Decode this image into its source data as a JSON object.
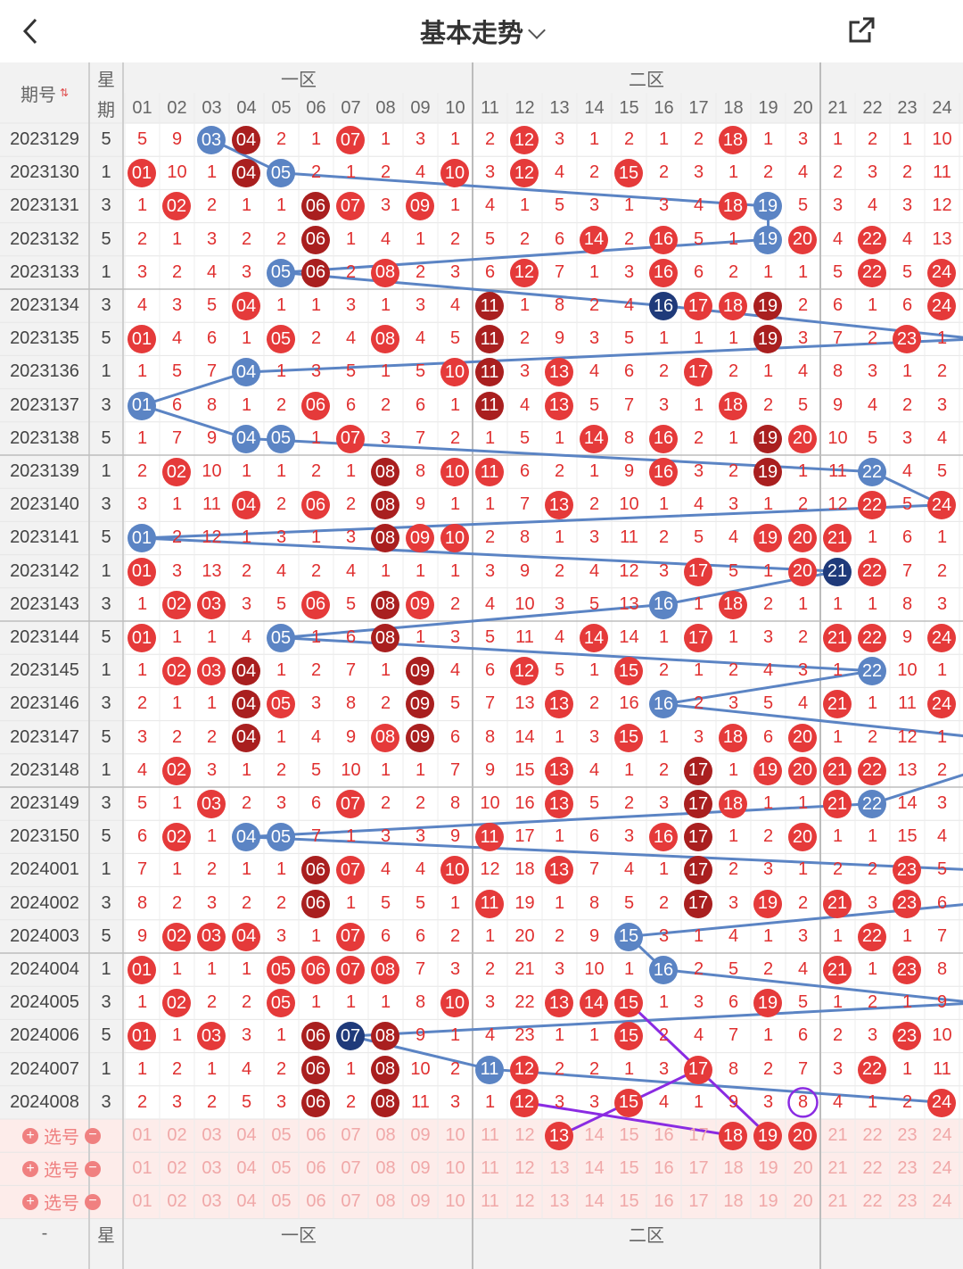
{
  "header": {
    "title": "基本走势",
    "back_icon": "chevron-left-icon",
    "share_icon": "share-icon"
  },
  "table": {
    "col_issue": "期号",
    "sort_icon": "sort-arrows-icon",
    "col_week_top": "星",
    "col_week_bottom": "期",
    "zone1": "一区",
    "zone2": "二区",
    "columns": [
      "01",
      "02",
      "03",
      "04",
      "05",
      "06",
      "07",
      "08",
      "09",
      "10",
      "11",
      "12",
      "13",
      "14",
      "15",
      "16",
      "17",
      "18",
      "19",
      "20",
      "21",
      "22",
      "23",
      "24"
    ],
    "rows": [
      {
        "issue": "2023129",
        "week": "5",
        "cells": [
          "5",
          "9",
          "03",
          "04",
          "2",
          "1",
          "07",
          "1",
          "3",
          "1",
          "2",
          "12",
          "3",
          "1",
          "2",
          "1",
          "2",
          "18",
          "1",
          "3",
          "1",
          "2",
          "1",
          "10"
        ]
      },
      {
        "issue": "2023130",
        "week": "1",
        "cells": [
          "01",
          "10",
          "1",
          "04",
          "05",
          "2",
          "1",
          "2",
          "4",
          "10",
          "3",
          "12",
          "4",
          "2",
          "15",
          "2",
          "3",
          "1",
          "2",
          "4",
          "2",
          "3",
          "2",
          "11"
        ]
      },
      {
        "issue": "2023131",
        "week": "3",
        "cells": [
          "1",
          "02",
          "2",
          "1",
          "1",
          "06",
          "07",
          "3",
          "09",
          "1",
          "4",
          "1",
          "5",
          "3",
          "1",
          "3",
          "4",
          "18",
          "19",
          "5",
          "3",
          "4",
          "3",
          "12"
        ]
      },
      {
        "issue": "2023132",
        "week": "5",
        "cells": [
          "2",
          "1",
          "3",
          "2",
          "2",
          "06",
          "1",
          "4",
          "1",
          "2",
          "5",
          "2",
          "6",
          "14",
          "2",
          "16",
          "5",
          "1",
          "19",
          "20",
          "4",
          "22",
          "4",
          "13"
        ]
      },
      {
        "issue": "2023133",
        "week": "1",
        "cells": [
          "3",
          "2",
          "4",
          "3",
          "05",
          "06",
          "2",
          "08",
          "2",
          "3",
          "6",
          "12",
          "7",
          "1",
          "3",
          "16",
          "6",
          "2",
          "1",
          "1",
          "5",
          "22",
          "5",
          "24"
        ]
      },
      {
        "issue": "2023134",
        "week": "3",
        "cells": [
          "4",
          "3",
          "5",
          "04",
          "1",
          "1",
          "3",
          "1",
          "3",
          "4",
          "11",
          "1",
          "8",
          "2",
          "4",
          "16",
          "17",
          "18",
          "19",
          "2",
          "6",
          "1",
          "6",
          "24"
        ]
      },
      {
        "issue": "2023135",
        "week": "5",
        "cells": [
          "01",
          "4",
          "6",
          "1",
          "05",
          "2",
          "4",
          "08",
          "4",
          "5",
          "11",
          "2",
          "9",
          "3",
          "5",
          "1",
          "1",
          "1",
          "19",
          "3",
          "7",
          "2",
          "23",
          "1"
        ]
      },
      {
        "issue": "2023136",
        "week": "1",
        "cells": [
          "1",
          "5",
          "7",
          "04",
          "1",
          "3",
          "5",
          "1",
          "5",
          "10",
          "11",
          "3",
          "13",
          "4",
          "6",
          "2",
          "17",
          "2",
          "1",
          "4",
          "8",
          "3",
          "1",
          "2"
        ]
      },
      {
        "issue": "2023137",
        "week": "3",
        "cells": [
          "01",
          "6",
          "8",
          "1",
          "2",
          "06",
          "6",
          "2",
          "6",
          "1",
          "11",
          "4",
          "13",
          "5",
          "7",
          "3",
          "1",
          "18",
          "2",
          "5",
          "9",
          "4",
          "2",
          "3"
        ]
      },
      {
        "issue": "2023138",
        "week": "5",
        "cells": [
          "1",
          "7",
          "9",
          "04",
          "05",
          "1",
          "07",
          "3",
          "7",
          "2",
          "1",
          "5",
          "1",
          "14",
          "8",
          "16",
          "2",
          "1",
          "19",
          "20",
          "10",
          "5",
          "3",
          "4"
        ]
      },
      {
        "issue": "2023139",
        "week": "1",
        "cells": [
          "2",
          "02",
          "10",
          "1",
          "1",
          "2",
          "1",
          "08",
          "8",
          "10",
          "11",
          "6",
          "2",
          "1",
          "9",
          "16",
          "3",
          "2",
          "19",
          "1",
          "11",
          "22",
          "4",
          "5"
        ]
      },
      {
        "issue": "2023140",
        "week": "3",
        "cells": [
          "3",
          "1",
          "11",
          "04",
          "2",
          "06",
          "2",
          "08",
          "9",
          "1",
          "1",
          "7",
          "13",
          "2",
          "10",
          "1",
          "4",
          "3",
          "1",
          "2",
          "12",
          "22",
          "5",
          "24"
        ]
      },
      {
        "issue": "2023141",
        "week": "5",
        "cells": [
          "01",
          "2",
          "12",
          "1",
          "3",
          "1",
          "3",
          "08",
          "09",
          "10",
          "2",
          "8",
          "1",
          "3",
          "11",
          "2",
          "5",
          "4",
          "19",
          "20",
          "21",
          "1",
          "6",
          "1"
        ]
      },
      {
        "issue": "2023142",
        "week": "1",
        "cells": [
          "01",
          "3",
          "13",
          "2",
          "4",
          "2",
          "4",
          "1",
          "1",
          "1",
          "3",
          "9",
          "2",
          "4",
          "12",
          "3",
          "17",
          "5",
          "1",
          "20",
          "21",
          "22",
          "7",
          "2"
        ]
      },
      {
        "issue": "2023143",
        "week": "3",
        "cells": [
          "1",
          "02",
          "03",
          "3",
          "5",
          "06",
          "5",
          "08",
          "09",
          "2",
          "4",
          "10",
          "3",
          "5",
          "13",
          "16",
          "1",
          "18",
          "2",
          "1",
          "1",
          "1",
          "8",
          "3"
        ]
      },
      {
        "issue": "2023144",
        "week": "5",
        "cells": [
          "01",
          "1",
          "1",
          "4",
          "05",
          "1",
          "6",
          "08",
          "1",
          "3",
          "5",
          "11",
          "4",
          "14",
          "14",
          "1",
          "17",
          "1",
          "3",
          "2",
          "21",
          "22",
          "9",
          "24"
        ]
      },
      {
        "issue": "2023145",
        "week": "1",
        "cells": [
          "1",
          "02",
          "03",
          "04",
          "1",
          "2",
          "7",
          "1",
          "09",
          "4",
          "6",
          "12",
          "5",
          "1",
          "15",
          "2",
          "1",
          "2",
          "4",
          "3",
          "1",
          "22",
          "10",
          "1"
        ]
      },
      {
        "issue": "2023146",
        "week": "3",
        "cells": [
          "2",
          "1",
          "1",
          "04",
          "05",
          "3",
          "8",
          "2",
          "09",
          "5",
          "7",
          "13",
          "13",
          "2",
          "16",
          "16",
          "2",
          "3",
          "5",
          "4",
          "21",
          "1",
          "11",
          "24"
        ]
      },
      {
        "issue": "2023147",
        "week": "5",
        "cells": [
          "3",
          "2",
          "2",
          "04",
          "1",
          "4",
          "9",
          "08",
          "09",
          "6",
          "8",
          "14",
          "1",
          "3",
          "15",
          "1",
          "3",
          "18",
          "6",
          "20",
          "1",
          "2",
          "12",
          "1"
        ]
      },
      {
        "issue": "2023148",
        "week": "1",
        "cells": [
          "4",
          "02",
          "3",
          "1",
          "2",
          "5",
          "10",
          "1",
          "1",
          "7",
          "9",
          "15",
          "13",
          "4",
          "1",
          "2",
          "17",
          "1",
          "19",
          "20",
          "21",
          "22",
          "13",
          "2"
        ]
      },
      {
        "issue": "2023149",
        "week": "3",
        "cells": [
          "5",
          "1",
          "03",
          "2",
          "3",
          "6",
          "07",
          "2",
          "2",
          "8",
          "10",
          "16",
          "13",
          "5",
          "2",
          "3",
          "17",
          "18",
          "1",
          "1",
          "21",
          "22",
          "14",
          "3"
        ]
      },
      {
        "issue": "2023150",
        "week": "5",
        "cells": [
          "6",
          "02",
          "1",
          "04",
          "05",
          "7",
          "1",
          "3",
          "3",
          "9",
          "11",
          "17",
          "1",
          "6",
          "3",
          "16",
          "17",
          "1",
          "2",
          "20",
          "1",
          "1",
          "15",
          "4"
        ]
      },
      {
        "issue": "2024001",
        "week": "1",
        "cells": [
          "7",
          "1",
          "2",
          "1",
          "1",
          "06",
          "07",
          "4",
          "4",
          "10",
          "12",
          "18",
          "13",
          "7",
          "4",
          "1",
          "17",
          "2",
          "3",
          "1",
          "2",
          "2",
          "23",
          "5"
        ]
      },
      {
        "issue": "2024002",
        "week": "3",
        "cells": [
          "8",
          "2",
          "3",
          "2",
          "2",
          "06",
          "1",
          "5",
          "5",
          "1",
          "11",
          "19",
          "1",
          "8",
          "5",
          "2",
          "17",
          "3",
          "19",
          "2",
          "21",
          "3",
          "23",
          "6"
        ]
      },
      {
        "issue": "2024003",
        "week": "5",
        "cells": [
          "9",
          "02",
          "03",
          "04",
          "3",
          "1",
          "07",
          "6",
          "6",
          "2",
          "1",
          "20",
          "2",
          "9",
          "15",
          "3",
          "1",
          "4",
          "1",
          "3",
          "1",
          "22",
          "1",
          "7"
        ]
      },
      {
        "issue": "2024004",
        "week": "1",
        "cells": [
          "01",
          "1",
          "1",
          "1",
          "05",
          "06",
          "07",
          "08",
          "7",
          "3",
          "2",
          "21",
          "3",
          "10",
          "1",
          "16",
          "2",
          "5",
          "2",
          "4",
          "21",
          "1",
          "23",
          "8"
        ]
      },
      {
        "issue": "2024005",
        "week": "3",
        "cells": [
          "1",
          "02",
          "2",
          "2",
          "05",
          "1",
          "1",
          "1",
          "8",
          "10",
          "3",
          "22",
          "13",
          "14",
          "15",
          "1",
          "3",
          "6",
          "19",
          "5",
          "1",
          "2",
          "1",
          "9"
        ]
      },
      {
        "issue": "2024006",
        "week": "5",
        "cells": [
          "01",
          "1",
          "03",
          "3",
          "1",
          "06",
          "07",
          "08",
          "9",
          "1",
          "4",
          "23",
          "1",
          "1",
          "15",
          "2",
          "4",
          "7",
          "1",
          "6",
          "2",
          "3",
          "23",
          "10"
        ]
      },
      {
        "issue": "2024007",
        "week": "1",
        "cells": [
          "1",
          "2",
          "1",
          "4",
          "2",
          "06",
          "1",
          "08",
          "10",
          "2",
          "11",
          "12",
          "2",
          "2",
          "1",
          "3",
          "17",
          "8",
          "2",
          "7",
          "3",
          "22",
          "1",
          "11"
        ]
      },
      {
        "issue": "2024008",
        "week": "3",
        "cells": [
          "2",
          "3",
          "2",
          "5",
          "3",
          "06",
          "2",
          "08",
          "11",
          "3",
          "1",
          "12",
          "3",
          "3",
          "15",
          "4",
          "1",
          "9",
          "3",
          "8",
          "4",
          "1",
          "2",
          "24"
        ]
      }
    ],
    "pick_label": "选号",
    "plus_icon": "plus-circle-icon",
    "minus_icon": "minus-circle-icon",
    "pick_rows": [
      {
        "selected": [
          "13",
          "18",
          "19",
          "20"
        ]
      },
      {
        "selected": []
      },
      {
        "selected": []
      }
    ],
    "footer_dash": "-"
  },
  "colors": {
    "red": "#e53a3a",
    "dark_red": "#a91f1f",
    "blue": "#5b84c4",
    "navy": "#1f3a7a",
    "purple": "#8a2be2",
    "grid_bg": "#ffffff",
    "header_bg": "#f2f2f2",
    "pick_bg": "#fdecea"
  }
}
